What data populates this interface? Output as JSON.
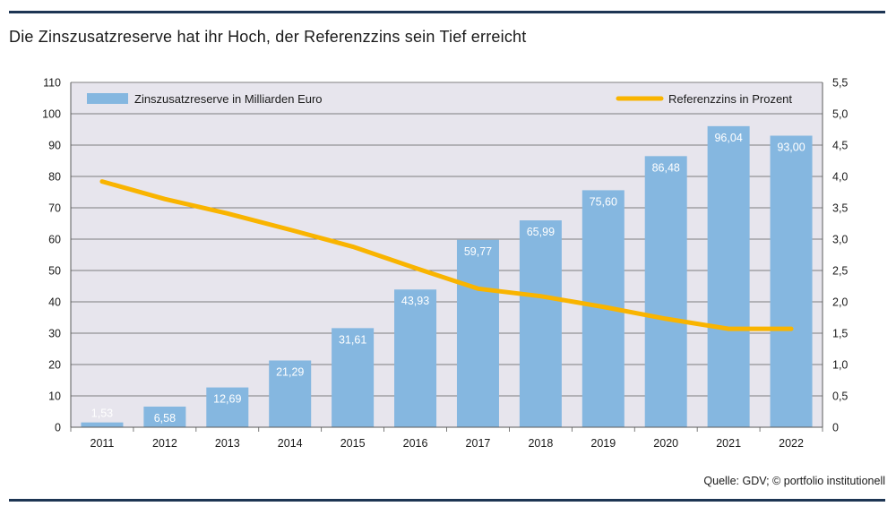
{
  "title": "Die Zinszusatzreserve hat ihr Hoch, der Referenzzins sein Tief erreicht",
  "source": "Quelle: GDV; © portfolio institutionell",
  "chart_data": {
    "type": "bar",
    "categories": [
      "2011",
      "2012",
      "2013",
      "2014",
      "2015",
      "2016",
      "2017",
      "2018",
      "2019",
      "2020",
      "2021",
      "2022"
    ],
    "series": [
      {
        "name": "Zinszusatzreserve in Milliarden Euro",
        "type": "bar",
        "axis": "left",
        "color": "#85b7e0",
        "values": [
          1.53,
          6.58,
          12.69,
          21.29,
          31.61,
          43.93,
          59.77,
          65.99,
          75.6,
          86.48,
          96.04,
          93.0
        ],
        "labels": [
          "1,53",
          "6,58",
          "12,69",
          "21,29",
          "31,61",
          "43,93",
          "59,77",
          "65,99",
          "75,60",
          "86,48",
          "96,04",
          "93,00"
        ]
      },
      {
        "name": "Referenzzins in Prozent",
        "type": "line",
        "axis": "right",
        "color": "#f9b400",
        "values": [
          3.92,
          3.64,
          3.41,
          3.15,
          2.88,
          2.54,
          2.21,
          2.09,
          1.92,
          1.73,
          1.57,
          1.57
        ]
      }
    ],
    "y_left": {
      "min": 0,
      "max": 110,
      "ticks": [
        "0",
        "10",
        "20",
        "30",
        "40",
        "50",
        "60",
        "70",
        "80",
        "90",
        "100",
        "110"
      ]
    },
    "y_right": {
      "min": 0,
      "max": 5.5,
      "ticks": [
        "0",
        "0,5",
        "1,0",
        "1,5",
        "2,0",
        "2,5",
        "3,0",
        "3,5",
        "4,0",
        "4,5",
        "5,0",
        "5,5"
      ]
    },
    "grid": true,
    "legend": "top"
  }
}
